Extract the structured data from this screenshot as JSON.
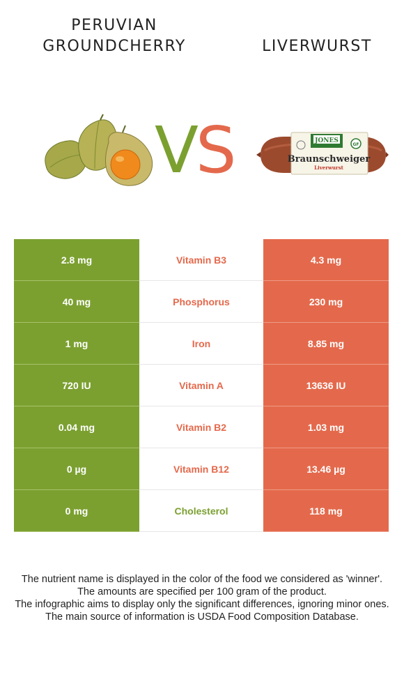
{
  "left_food": {
    "title": "PERUVIAN GROUNDCHERRY",
    "color": "#7ba030"
  },
  "right_food": {
    "title": "LIVERWURST",
    "color": "#e4694c"
  },
  "vs": {
    "v": "V",
    "s": "S"
  },
  "package_label": {
    "brand": "JONES",
    "product": "Braunschweiger",
    "variety": "Liverwurst",
    "badge": "GF"
  },
  "rows": [
    {
      "left": "2.8 mg",
      "nutrient": "Vitamin B3",
      "right": "4.3 mg",
      "winner": "right"
    },
    {
      "left": "40 mg",
      "nutrient": "Phosphorus",
      "right": "230 mg",
      "winner": "right"
    },
    {
      "left": "1 mg",
      "nutrient": "Iron",
      "right": "8.85 mg",
      "winner": "right"
    },
    {
      "left": "720 IU",
      "nutrient": "Vitamin A",
      "right": "13636 IU",
      "winner": "right"
    },
    {
      "left": "0.04 mg",
      "nutrient": "Vitamin B2",
      "right": "1.03 mg",
      "winner": "right"
    },
    {
      "left": "0 µg",
      "nutrient": "Vitamin B12",
      "right": "13.46 µg",
      "winner": "right"
    },
    {
      "left": "0 mg",
      "nutrient": "Cholesterol",
      "right": "118 mg",
      "winner": "left"
    }
  ],
  "footnote": [
    "The nutrient name is displayed in the color of the food we considered as 'winner'.",
    "The amounts are specified per 100 gram of the product.",
    "The infographic aims to display only the significant differences, ignoring minor ones.",
    "The main source of information is USDA Food Composition Database."
  ]
}
